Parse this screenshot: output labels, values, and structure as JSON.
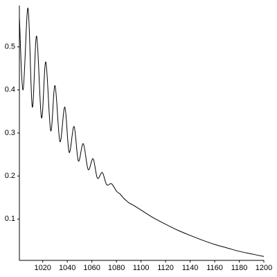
{
  "chart_data": {
    "type": "line",
    "x": [
      1001,
      1004,
      1008,
      1011.5,
      1015,
      1019,
      1022.5,
      1026.5,
      1030,
      1034,
      1038,
      1041.5,
      1045.5,
      1049,
      1053,
      1057,
      1061,
      1064.5,
      1068.5,
      1072,
      1076,
      1080,
      1083,
      1086,
      1088,
      1090,
      1095,
      1100,
      1110,
      1120,
      1130,
      1140,
      1150,
      1160,
      1170,
      1180,
      1190,
      1200
    ],
    "series": [
      {
        "color": "#000000",
        "values": [
          0.57,
          0.4,
          0.59,
          0.36,
          0.525,
          0.335,
          0.465,
          0.305,
          0.41,
          0.28,
          0.36,
          0.255,
          0.315,
          0.235,
          0.275,
          0.215,
          0.24,
          0.195,
          0.208,
          0.18,
          0.182,
          0.165,
          0.158,
          0.148,
          0.143,
          0.138,
          0.13,
          0.121,
          0.103,
          0.088,
          0.074,
          0.062,
          0.051,
          0.041,
          0.033,
          0.025,
          0.019,
          0.013
        ]
      }
    ],
    "xlim": [
      1001,
      1200
    ],
    "ylim": [
      0.004,
      0.596
    ],
    "xticks": [
      1020,
      1040,
      1060,
      1080,
      1100,
      1120,
      1140,
      1160,
      1180,
      1200
    ],
    "yticks": [
      0.1,
      0.2,
      0.3,
      0.4,
      0.5
    ],
    "grid": false
  }
}
